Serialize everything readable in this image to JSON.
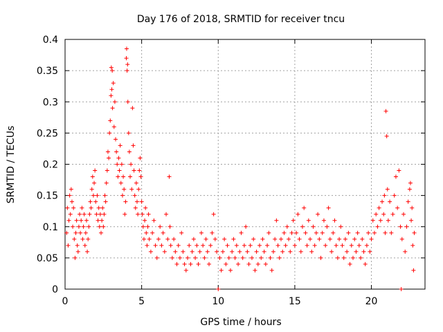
{
  "chart_data": {
    "type": "scatter",
    "title": "Day 176 of 2018, SRMTID for receiver tncu",
    "xlabel": "GPS time / hours",
    "ylabel": "SRMTID / TECUs",
    "xlim": [
      0,
      23.5
    ],
    "ylim": [
      0,
      0.4
    ],
    "grid": true,
    "x_ticks": [
      0,
      5,
      10,
      15,
      20
    ],
    "x_tick_labels": [
      "0",
      "5",
      "10",
      "15",
      "20"
    ],
    "y_ticks": [
      0,
      0.05,
      0.1,
      0.15,
      0.2,
      0.25,
      0.3,
      0.35,
      0.4
    ],
    "y_tick_labels": [
      "0",
      "0.05",
      "0.1",
      "0.15",
      "0.2",
      "0.25",
      "0.3",
      "0.35",
      "0.4"
    ],
    "marker": "plus",
    "marker_color": "#ff0000",
    "series": [
      {
        "name": "SRMTID",
        "points": [
          [
            0.1,
            0.09
          ],
          [
            0.15,
            0.13
          ],
          [
            0.2,
            0.07
          ],
          [
            0.25,
            0.11
          ],
          [
            0.3,
            0.15
          ],
          [
            0.35,
            0.12
          ],
          [
            0.4,
            0.16
          ],
          [
            0.45,
            0.14
          ],
          [
            0.5,
            0.1
          ],
          [
            0.55,
            0.13
          ],
          [
            0.6,
            0.08
          ],
          [
            0.65,
            0.05
          ],
          [
            0.7,
            0.09
          ],
          [
            0.75,
            0.11
          ],
          [
            0.8,
            0.07
          ],
          [
            0.85,
            0.06
          ],
          [
            0.9,
            0.1
          ],
          [
            0.95,
            0.12
          ],
          [
            1.0,
            0.09
          ],
          [
            1.05,
            0.11
          ],
          [
            1.1,
            0.13
          ],
          [
            1.15,
            0.08
          ],
          [
            1.2,
            0.1
          ],
          [
            1.25,
            0.12
          ],
          [
            1.3,
            0.07
          ],
          [
            1.35,
            0.09
          ],
          [
            1.4,
            0.11
          ],
          [
            1.45,
            0.06
          ],
          [
            1.5,
            0.08
          ],
          [
            1.55,
            0.1
          ],
          [
            1.6,
            0.12
          ],
          [
            1.65,
            0.14
          ],
          [
            1.7,
            0.13
          ],
          [
            1.75,
            0.16
          ],
          [
            1.8,
            0.18
          ],
          [
            1.85,
            0.15
          ],
          [
            1.9,
            0.17
          ],
          [
            1.95,
            0.19
          ],
          [
            2.0,
            0.14
          ],
          [
            2.05,
            0.12
          ],
          [
            2.1,
            0.15
          ],
          [
            2.15,
            0.11
          ],
          [
            2.2,
            0.13
          ],
          [
            2.25,
            0.1
          ],
          [
            2.3,
            0.12
          ],
          [
            2.35,
            0.09
          ],
          [
            2.4,
            0.11
          ],
          [
            2.45,
            0.13
          ],
          [
            2.5,
            0.1
          ],
          [
            2.55,
            0.12
          ],
          [
            2.6,
            0.15
          ],
          [
            2.65,
            0.14
          ],
          [
            2.7,
            0.17
          ],
          [
            2.75,
            0.19
          ],
          [
            2.8,
            0.22
          ],
          [
            2.85,
            0.21
          ],
          [
            2.9,
            0.25
          ],
          [
            2.95,
            0.27
          ],
          [
            3.0,
            0.31
          ],
          [
            3.02,
            0.355
          ],
          [
            3.05,
            0.32
          ],
          [
            3.08,
            0.35
          ],
          [
            3.1,
            0.29
          ],
          [
            3.15,
            0.33
          ],
          [
            3.2,
            0.26
          ],
          [
            3.25,
            0.3
          ],
          [
            3.3,
            0.24
          ],
          [
            3.35,
            0.22
          ],
          [
            3.4,
            0.2
          ],
          [
            3.45,
            0.18
          ],
          [
            3.5,
            0.21
          ],
          [
            3.55,
            0.19
          ],
          [
            3.6,
            0.23
          ],
          [
            3.65,
            0.17
          ],
          [
            3.7,
            0.2
          ],
          [
            3.75,
            0.15
          ],
          [
            3.8,
            0.18
          ],
          [
            3.85,
            0.16
          ],
          [
            3.9,
            0.12
          ],
          [
            3.95,
            0.14
          ],
          [
            4.0,
            0.37
          ],
          [
            4.02,
            0.385
          ],
          [
            4.05,
            0.35
          ],
          [
            4.08,
            0.36
          ],
          [
            4.1,
            0.3
          ],
          [
            4.15,
            0.25
          ],
          [
            4.2,
            0.22
          ],
          [
            4.25,
            0.18
          ],
          [
            4.3,
            0.2
          ],
          [
            4.35,
            0.16
          ],
          [
            4.4,
            0.29
          ],
          [
            4.45,
            0.23
          ],
          [
            4.5,
            0.19
          ],
          [
            4.55,
            0.15
          ],
          [
            4.6,
            0.13
          ],
          [
            4.65,
            0.17
          ],
          [
            4.7,
            0.14
          ],
          [
            4.75,
            0.12
          ],
          [
            4.8,
            0.16
          ],
          [
            4.85,
            0.19
          ],
          [
            4.9,
            0.21
          ],
          [
            4.95,
            0.18
          ],
          [
            5.0,
            0.14
          ],
          [
            5.05,
            0.12
          ],
          [
            5.1,
            0.1
          ],
          [
            5.15,
            0.08
          ],
          [
            5.2,
            0.11
          ],
          [
            5.25,
            0.13
          ],
          [
            5.3,
            0.09
          ],
          [
            5.35,
            0.07
          ],
          [
            5.4,
            0.1
          ],
          [
            5.45,
            0.12
          ],
          [
            5.5,
            0.08
          ],
          [
            5.6,
            0.06
          ],
          [
            5.7,
            0.09
          ],
          [
            5.8,
            0.11
          ],
          [
            5.9,
            0.07
          ],
          [
            6.0,
            0.05
          ],
          [
            6.1,
            0.08
          ],
          [
            6.2,
            0.1
          ],
          [
            6.3,
            0.07
          ],
          [
            6.4,
            0.09
          ],
          [
            6.5,
            0.06
          ],
          [
            6.6,
            0.12
          ],
          [
            6.7,
            0.08
          ],
          [
            6.8,
            0.18
          ],
          [
            6.85,
            0.1
          ],
          [
            6.9,
            0.07
          ],
          [
            7.0,
            0.05
          ],
          [
            7.1,
            0.08
          ],
          [
            7.2,
            0.06
          ],
          [
            7.3,
            0.04
          ],
          [
            7.4,
            0.07
          ],
          [
            7.5,
            0.05
          ],
          [
            7.6,
            0.09
          ],
          [
            7.7,
            0.06
          ],
          [
            7.8,
            0.04
          ],
          [
            7.9,
            0.03
          ],
          [
            8.0,
            0.05
          ],
          [
            8.1,
            0.07
          ],
          [
            8.2,
            0.04
          ],
          [
            8.3,
            0.06
          ],
          [
            8.4,
            0.08
          ],
          [
            8.5,
            0.05
          ],
          [
            8.6,
            0.07
          ],
          [
            8.7,
            0.04
          ],
          [
            8.8,
            0.06
          ],
          [
            8.9,
            0.09
          ],
          [
            9.0,
            0.07
          ],
          [
            9.1,
            0.05
          ],
          [
            9.2,
            0.08
          ],
          [
            9.3,
            0.06
          ],
          [
            9.4,
            0.04
          ],
          [
            9.5,
            0.07
          ],
          [
            9.6,
            0.09
          ],
          [
            9.7,
            0.12
          ],
          [
            9.8,
            0.08
          ],
          [
            9.9,
            0.06
          ],
          [
            10.0,
            0.0
          ],
          [
            10.1,
            0.05
          ],
          [
            10.2,
            0.03
          ],
          [
            10.3,
            0.06
          ],
          [
            10.4,
            0.08
          ],
          [
            10.5,
            0.04
          ],
          [
            10.6,
            0.07
          ],
          [
            10.7,
            0.05
          ],
          [
            10.8,
            0.03
          ],
          [
            10.9,
            0.06
          ],
          [
            11.0,
            0.08
          ],
          [
            11.1,
            0.05
          ],
          [
            11.2,
            0.07
          ],
          [
            11.3,
            0.04
          ],
          [
            11.4,
            0.06
          ],
          [
            11.5,
            0.09
          ],
          [
            11.6,
            0.05
          ],
          [
            11.7,
            0.07
          ],
          [
            11.8,
            0.1
          ],
          [
            11.9,
            0.06
          ],
          [
            12.0,
            0.04
          ],
          [
            12.1,
            0.07
          ],
          [
            12.2,
            0.05
          ],
          [
            12.3,
            0.08
          ],
          [
            12.4,
            0.03
          ],
          [
            12.5,
            0.06
          ],
          [
            12.6,
            0.04
          ],
          [
            12.7,
            0.07
          ],
          [
            12.8,
            0.05
          ],
          [
            12.9,
            0.08
          ],
          [
            13.0,
            0.06
          ],
          [
            13.1,
            0.04
          ],
          [
            13.2,
            0.07
          ],
          [
            13.3,
            0.09
          ],
          [
            13.4,
            0.05
          ],
          [
            13.5,
            0.03
          ],
          [
            13.6,
            0.06
          ],
          [
            13.7,
            0.08
          ],
          [
            13.8,
            0.11
          ],
          [
            13.9,
            0.07
          ],
          [
            14.0,
            0.05
          ],
          [
            14.1,
            0.08
          ],
          [
            14.2,
            0.06
          ],
          [
            14.3,
            0.09
          ],
          [
            14.4,
            0.07
          ],
          [
            14.5,
            0.1
          ],
          [
            14.6,
            0.08
          ],
          [
            14.7,
            0.06
          ],
          [
            14.8,
            0.09
          ],
          [
            14.9,
            0.11
          ],
          [
            15.0,
            0.07
          ],
          [
            15.1,
            0.09
          ],
          [
            15.2,
            0.12
          ],
          [
            15.3,
            0.08
          ],
          [
            15.4,
            0.06
          ],
          [
            15.5,
            0.1
          ],
          [
            15.6,
            0.13
          ],
          [
            15.7,
            0.09
          ],
          [
            15.8,
            0.07
          ],
          [
            15.9,
            0.11
          ],
          [
            16.0,
            0.08
          ],
          [
            16.1,
            0.06
          ],
          [
            16.2,
            0.1
          ],
          [
            16.3,
            0.07
          ],
          [
            16.4,
            0.09
          ],
          [
            16.5,
            0.12
          ],
          [
            16.6,
            0.08
          ],
          [
            16.7,
            0.05
          ],
          [
            16.8,
            0.09
          ],
          [
            16.9,
            0.11
          ],
          [
            17.0,
            0.07
          ],
          [
            17.1,
            0.1
          ],
          [
            17.2,
            0.13
          ],
          [
            17.3,
            0.08
          ],
          [
            17.4,
            0.06
          ],
          [
            17.5,
            0.09
          ],
          [
            17.6,
            0.11
          ],
          [
            17.7,
            0.07
          ],
          [
            17.8,
            0.05
          ],
          [
            17.9,
            0.08
          ],
          [
            18.0,
            0.1
          ],
          [
            18.1,
            0.07
          ],
          [
            18.2,
            0.05
          ],
          [
            18.3,
            0.08
          ],
          [
            18.4,
            0.06
          ],
          [
            18.5,
            0.09
          ],
          [
            18.6,
            0.04
          ],
          [
            18.7,
            0.07
          ],
          [
            18.8,
            0.05
          ],
          [
            18.9,
            0.08
          ],
          [
            19.0,
            0.06
          ],
          [
            19.1,
            0.09
          ],
          [
            19.2,
            0.07
          ],
          [
            19.3,
            0.05
          ],
          [
            19.4,
            0.08
          ],
          [
            19.5,
            0.06
          ],
          [
            19.6,
            0.04
          ],
          [
            19.7,
            0.07
          ],
          [
            19.8,
            0.09
          ],
          [
            19.9,
            0.06
          ],
          [
            20.0,
            0.08
          ],
          [
            20.1,
            0.11
          ],
          [
            20.2,
            0.09
          ],
          [
            20.3,
            0.12
          ],
          [
            20.4,
            0.1
          ],
          [
            20.5,
            0.13
          ],
          [
            20.6,
            0.11
          ],
          [
            20.7,
            0.14
          ],
          [
            20.8,
            0.12
          ],
          [
            20.85,
            0.15
          ],
          [
            20.9,
            0.09
          ],
          [
            20.95,
            0.285
          ],
          [
            21.0,
            0.245
          ],
          [
            21.05,
            0.16
          ],
          [
            21.1,
            0.11
          ],
          [
            21.2,
            0.14
          ],
          [
            21.3,
            0.09
          ],
          [
            21.4,
            0.12
          ],
          [
            21.5,
            0.15
          ],
          [
            21.6,
            0.18
          ],
          [
            21.7,
            0.13
          ],
          [
            21.8,
            0.19
          ],
          [
            21.9,
            0.1
          ],
          [
            21.95,
            0.0
          ],
          [
            22.0,
            0.08
          ],
          [
            22.1,
            0.12
          ],
          [
            22.2,
            0.06
          ],
          [
            22.3,
            0.1
          ],
          [
            22.4,
            0.14
          ],
          [
            22.5,
            0.16
          ],
          [
            22.55,
            0.17
          ],
          [
            22.6,
            0.11
          ],
          [
            22.65,
            0.13
          ],
          [
            22.7,
            0.07
          ],
          [
            22.75,
            0.03
          ],
          [
            22.8,
            0.09
          ]
        ]
      }
    ]
  }
}
